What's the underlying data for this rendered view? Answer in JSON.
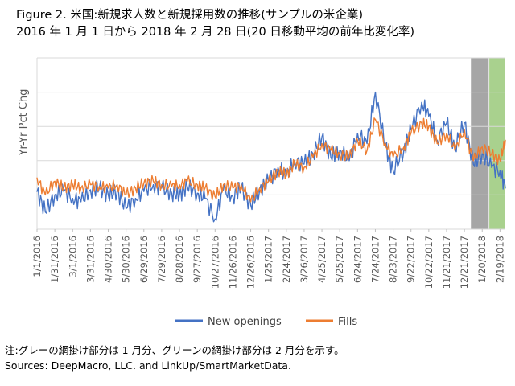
{
  "title_line1": "Figure 2. 米国:新規求人数と新規採用数の推移(サンプルの米企業)",
  "title_line2": "2016 年 1 月 1 日から  2018 年 2 月 28 日(20 日移動平均の前年比変化率)",
  "note": "注:グレーの網掛け部分は 1 月分、グリーンの網掛け部分は 2 月分を示す。",
  "source": "Sources: DeepMacro, LLC. and LinkUp/SmartMarketData.",
  "colors": {
    "new_openings": "#4472C4",
    "fills": "#ED7D31",
    "shade_jan": "#A6A6A6",
    "shade_feb": "#A9D18E",
    "grid": "#D9D9D9",
    "axis_text": "#595959"
  },
  "chart_data": {
    "type": "line",
    "ylabel": "Yr-Yr Pct Chg",
    "xlabel": "",
    "y_tick_labels_shown": false,
    "grid": "horizontal",
    "legend_position": "bottom",
    "x_tick_labels": [
      "1/1/2016",
      "1/31/2016",
      "3/1/2016",
      "3/31/2016",
      "4/30/2016",
      "5/30/2016",
      "6/29/2016",
      "7/29/2016",
      "8/28/2016",
      "9/27/2016",
      "10/27/2016",
      "11/26/2016",
      "12/26/2016",
      "1/25/2017",
      "2/24/2017",
      "3/26/2017",
      "4/25/2017",
      "5/25/2017",
      "6/24/2017",
      "7/24/2017",
      "8/23/2017",
      "9/22/2017",
      "10/22/2017",
      "11/21/2017",
      "12/21/2017",
      "1/20/2018",
      "2/19/2018"
    ],
    "x_range": [
      "1/1/2016",
      "2/28/2018"
    ],
    "shaded_regions": [
      {
        "label": "Jan 2018",
        "start": "1/1/2018",
        "end": "1/31/2018",
        "color": "#A6A6A6"
      },
      {
        "label": "Feb 2018",
        "start": "2/1/2018",
        "end": "2/28/2018",
        "color": "#A9D18E"
      }
    ],
    "note": "Y values are approximate relative levels (no tick labels printed); read as approximate units on a 0–100 scale.",
    "series": [
      {
        "name": "New openings",
        "x": [
          "1/1/2016",
          "1/15/2016",
          "1/31/2016",
          "2/15/2016",
          "3/1/2016",
          "3/15/2016",
          "3/31/2016",
          "4/15/2016",
          "4/30/2016",
          "5/15/2016",
          "5/30/2016",
          "6/15/2016",
          "6/29/2016",
          "7/15/2016",
          "7/29/2016",
          "8/15/2016",
          "8/28/2016",
          "9/10/2016",
          "9/27/2016",
          "10/10/2016",
          "10/27/2016",
          "11/10/2016",
          "11/26/2016",
          "12/10/2016",
          "12/26/2016",
          "1/10/2017",
          "1/25/2017",
          "2/10/2017",
          "2/24/2017",
          "3/10/2017",
          "3/26/2017",
          "4/10/2017",
          "4/25/2017",
          "5/10/2017",
          "5/25/2017",
          "6/10/2017",
          "6/24/2017",
          "7/10/2017",
          "7/24/2017",
          "8/10/2017",
          "8/23/2017",
          "9/10/2017",
          "9/22/2017",
          "10/10/2017",
          "10/22/2017",
          "11/5/2017",
          "11/21/2017",
          "12/5/2017",
          "12/21/2017",
          "1/5/2018",
          "1/20/2018",
          "2/5/2018",
          "2/19/2018",
          "2/28/2018"
        ],
        "y": [
          22,
          10,
          20,
          22,
          18,
          16,
          23,
          24,
          20,
          22,
          12,
          18,
          22,
          26,
          24,
          21,
          20,
          25,
          21,
          18,
          6,
          23,
          19,
          24,
          14,
          23,
          28,
          36,
          31,
          40,
          38,
          44,
          54,
          42,
          46,
          40,
          56,
          50,
          80,
          48,
          34,
          46,
          58,
          74,
          66,
          52,
          62,
          48,
          62,
          38,
          44,
          36,
          34,
          24
        ]
      },
      {
        "name": "Fills",
        "x": [
          "1/1/2016",
          "1/15/2016",
          "1/31/2016",
          "2/15/2016",
          "3/1/2016",
          "3/15/2016",
          "3/31/2016",
          "4/15/2016",
          "4/30/2016",
          "5/15/2016",
          "5/30/2016",
          "6/15/2016",
          "6/29/2016",
          "7/15/2016",
          "7/29/2016",
          "8/15/2016",
          "8/28/2016",
          "9/10/2016",
          "9/27/2016",
          "10/10/2016",
          "10/27/2016",
          "11/10/2016",
          "11/26/2016",
          "12/10/2016",
          "12/26/2016",
          "1/10/2017",
          "1/25/2017",
          "2/10/2017",
          "2/24/2017",
          "3/10/2017",
          "3/26/2017",
          "4/10/2017",
          "4/25/2017",
          "5/10/2017",
          "5/25/2017",
          "6/10/2017",
          "6/24/2017",
          "7/10/2017",
          "7/24/2017",
          "8/10/2017",
          "8/23/2017",
          "9/10/2017",
          "9/22/2017",
          "10/10/2017",
          "10/22/2017",
          "11/5/2017",
          "11/21/2017",
          "12/5/2017",
          "12/21/2017",
          "1/5/2018",
          "1/20/2018",
          "2/5/2018",
          "2/19/2018",
          "2/28/2018"
        ],
        "y": [
          30,
          20,
          28,
          24,
          26,
          24,
          26,
          25,
          24,
          26,
          20,
          24,
          27,
          28,
          26,
          25,
          26,
          28,
          26,
          24,
          19,
          26,
          24,
          26,
          16,
          24,
          28,
          34,
          32,
          38,
          36,
          42,
          50,
          46,
          44,
          42,
          52,
          46,
          64,
          50,
          42,
          48,
          56,
          62,
          60,
          50,
          56,
          46,
          58,
          40,
          48,
          44,
          40,
          52
        ]
      }
    ]
  }
}
